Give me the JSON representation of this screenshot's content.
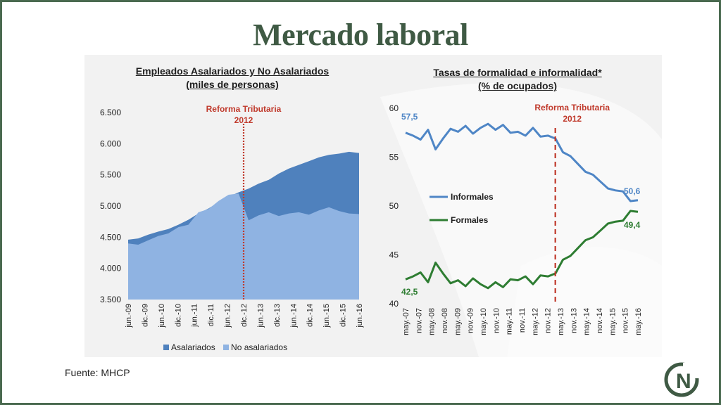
{
  "slide": {
    "title": "Mercado laboral",
    "source": "Fuente: MHCP",
    "logo_text": "GN"
  },
  "colors": {
    "asalariados": "#4f81bd",
    "no_asalariados": "#8fb3e2",
    "informales": "#4f86c6",
    "formales": "#2e7d32",
    "reform_line": "#c0392b",
    "title": "#3f5a44"
  },
  "chart_data": [
    {
      "type": "area",
      "title": "Empleados Asalariados y No Asalariados",
      "subtitle": "(miles de personas)",
      "stacked": false,
      "y_ticks": [
        "3.500",
        "4.000",
        "4.500",
        "5.000",
        "5.500",
        "6.000",
        "6.500"
      ],
      "ylim": [
        3500,
        6500
      ],
      "x_ticks": [
        "jun.-09",
        "dic.-09",
        "jun.-10",
        "dic.-10",
        "jun.-11",
        "dic.-11",
        "jun.-12",
        "dic.-12",
        "jun.-13",
        "dic.-13",
        "jun.-14",
        "dic.-14",
        "jun.-15",
        "dic.-15",
        "jun.-16"
      ],
      "annotation": {
        "label_line1": "Reforma Tributaria",
        "label_line2": "2012",
        "x": "dic.-12"
      },
      "legend": [
        "Asalariados",
        "No asalariados"
      ],
      "series": [
        {
          "name": "Asalariados",
          "values": [
            4460,
            4480,
            4540,
            4590,
            4630,
            4700,
            4780,
            4880,
            4960,
            5060,
            5150,
            5220,
            5280,
            5360,
            5420,
            5520,
            5600,
            5660,
            5720,
            5780,
            5820,
            5840,
            5870,
            5850
          ]
        },
        {
          "name": "No asalariados",
          "values": [
            4400,
            4380,
            4450,
            4520,
            4560,
            4660,
            4700,
            4900,
            4950,
            5080,
            5180,
            5200,
            4770,
            4850,
            4900,
            4840,
            4880,
            4900,
            4860,
            4930,
            4980,
            4920,
            4880,
            4870
          ]
        }
      ]
    },
    {
      "type": "line",
      "title": "Tasas de formalidad e informalidad*",
      "subtitle": "(% de ocupados)",
      "y_ticks": [
        "40",
        "45",
        "50",
        "55",
        "60"
      ],
      "ylim": [
        40,
        60
      ],
      "x_ticks": [
        "may.-07",
        "nov.-07",
        "may.-08",
        "nov.-08",
        "may.-09",
        "nov.-09",
        "may.-10",
        "nov.-10",
        "may.-11",
        "nov.-11",
        "may.-12",
        "nov.-12",
        "may.-13",
        "nov.-13",
        "may.-14",
        "nov.-14",
        "may.-15",
        "nov.-15",
        "may.-16"
      ],
      "annotation": {
        "label_line1": "Reforma Tributaria",
        "label_line2": "2012",
        "x": "may.-13"
      },
      "labels": {
        "informal_start": "57,5",
        "formal_start": "42,5",
        "informal_end": "50,6",
        "formal_end": "49,4"
      },
      "series": [
        {
          "name": "Informales",
          "values": [
            57.5,
            57.2,
            56.8,
            57.8,
            55.8,
            56.9,
            57.9,
            57.6,
            58.2,
            57.4,
            58.0,
            58.4,
            57.8,
            58.3,
            57.5,
            57.6,
            57.2,
            58.0,
            57.1,
            57.2,
            56.9,
            55.5,
            55.1,
            54.3,
            53.5,
            53.2,
            52.5,
            51.8,
            51.6,
            51.5,
            50.5,
            50.6
          ]
        },
        {
          "name": "Formales",
          "values": [
            42.5,
            42.8,
            43.2,
            42.2,
            44.2,
            43.1,
            42.1,
            42.4,
            41.8,
            42.6,
            42.0,
            41.6,
            42.2,
            41.7,
            42.5,
            42.4,
            42.8,
            42.0,
            42.9,
            42.8,
            43.1,
            44.5,
            44.9,
            45.7,
            46.5,
            46.8,
            47.5,
            48.2,
            48.4,
            48.5,
            49.5,
            49.4
          ]
        }
      ]
    }
  ]
}
